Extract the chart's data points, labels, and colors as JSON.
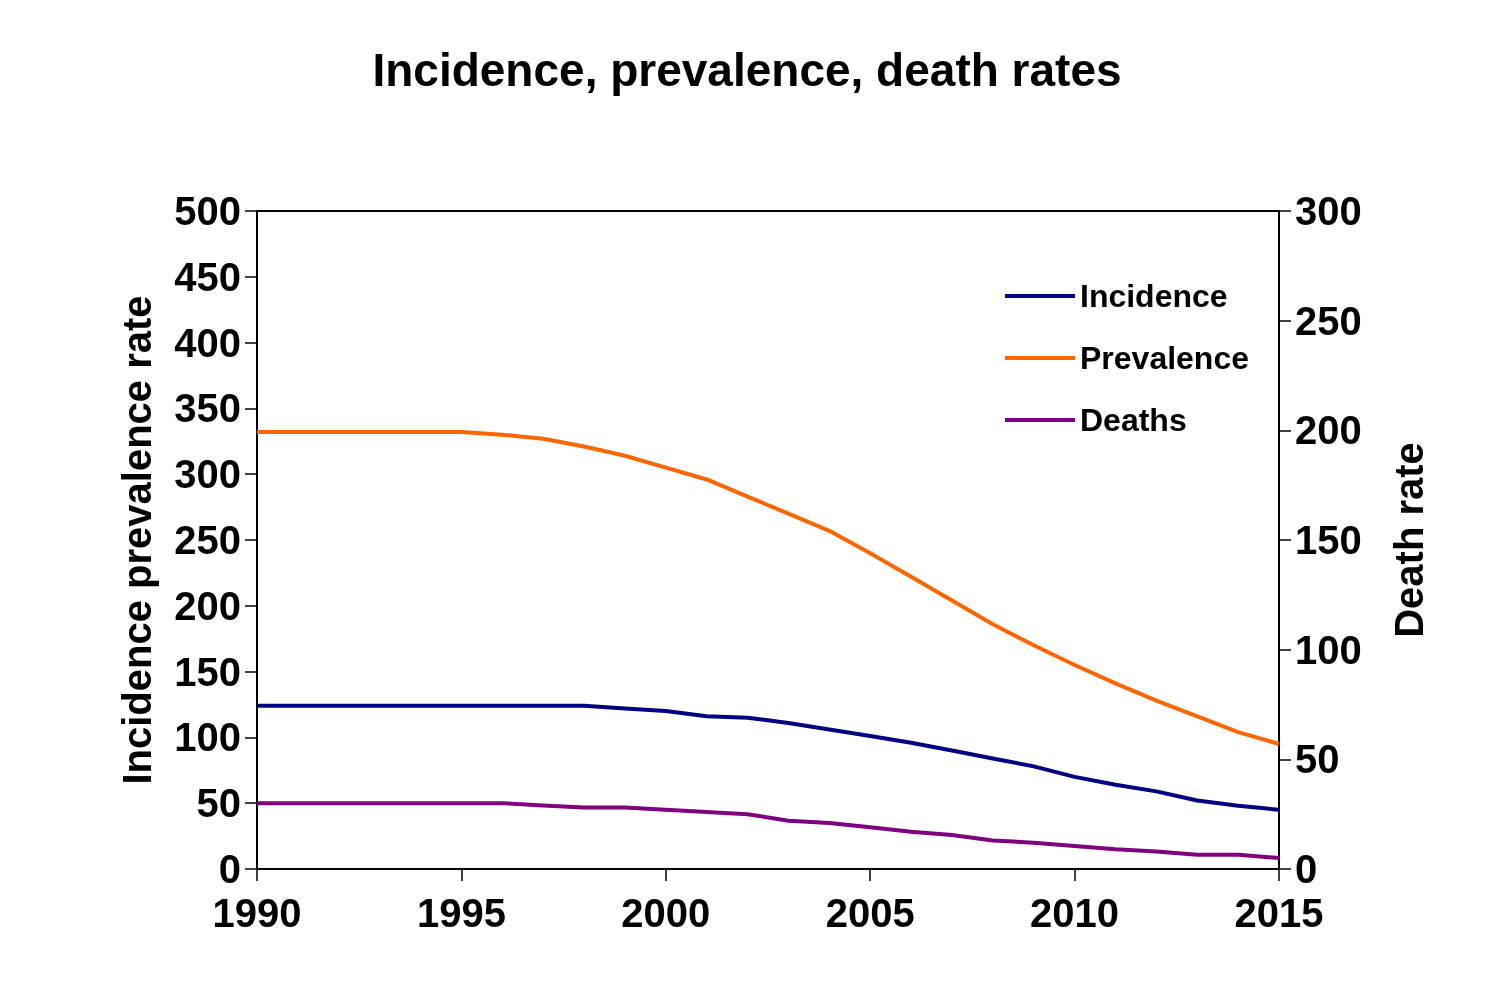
{
  "chart_data": {
    "type": "line",
    "title": "Incidence, prevalence, death rates",
    "ylabel": "Incidence prevalence rate",
    "y2label": "Death rate",
    "x": [
      1990,
      1991,
      1992,
      1993,
      1994,
      1995,
      1996,
      1997,
      1998,
      1999,
      2000,
      2001,
      2002,
      2003,
      2004,
      2005,
      2006,
      2007,
      2008,
      2009,
      2010,
      2011,
      2012,
      2013,
      2014,
      2015
    ],
    "series": [
      {
        "name": "Incidence",
        "color": "#000080",
        "values": [
          124,
          124,
          124,
          124,
          124,
          124,
          124,
          124,
          124,
          122,
          120,
          116,
          115,
          111,
          106,
          101,
          96,
          90,
          84,
          78,
          70,
          64,
          59,
          52,
          48,
          45
        ]
      },
      {
        "name": "Prevalence",
        "color": "#ff6600",
        "values": [
          332,
          332,
          332,
          332,
          332,
          332,
          330,
          327,
          321,
          314,
          305,
          296,
          283,
          270,
          257,
          240,
          222,
          204,
          186,
          170,
          155,
          141,
          128,
          116,
          104,
          95
        ]
      },
      {
        "name": "Deaths",
        "color": "#800080",
        "axis": "y2",
        "values": [
          30,
          30,
          30,
          30,
          30,
          30,
          30,
          29,
          28,
          28,
          27,
          26,
          25,
          22,
          21,
          19,
          17,
          15.5,
          13,
          12,
          10.5,
          9,
          8,
          6.5,
          6.5,
          5
        ]
      }
    ],
    "xlim": [
      1990,
      2015
    ],
    "xticks": [
      1990,
      1995,
      2000,
      2005,
      2010,
      2015
    ],
    "ylim": [
      0,
      500
    ],
    "yticks": [
      0,
      50,
      100,
      150,
      200,
      250,
      300,
      350,
      400,
      450,
      500
    ],
    "y2lim": [
      0,
      300
    ],
    "y2ticks": [
      0,
      50,
      100,
      150,
      200,
      250,
      300
    ],
    "grid": false,
    "legend": "top right",
    "marker": "none",
    "line_style": "solid"
  }
}
